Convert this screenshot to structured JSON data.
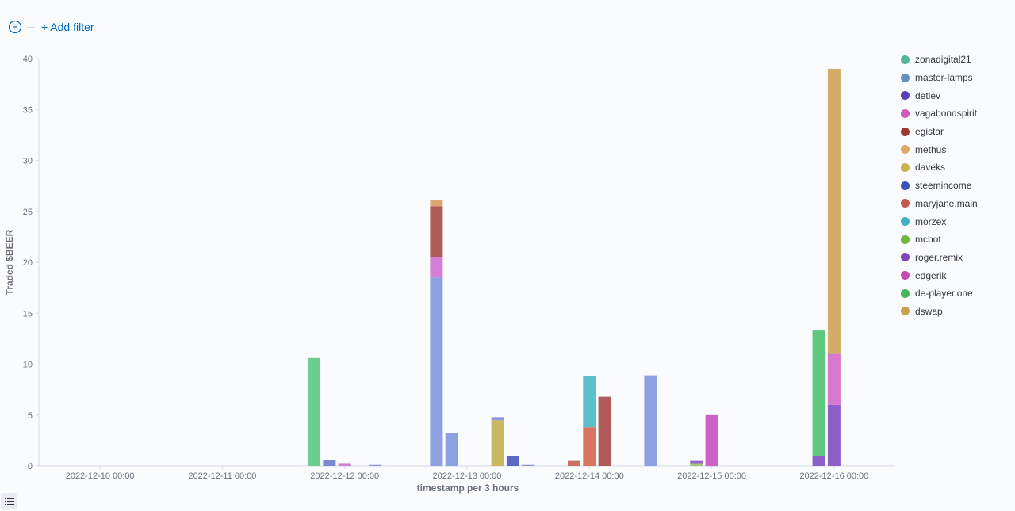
{
  "filter_bar": {
    "icon": "filter-icon",
    "add_filter_label": "+ Add filter",
    "accent": "#006bb8"
  },
  "legend_toggle_icon": "list-icon",
  "chart_data": {
    "type": "bar",
    "stacked": true,
    "xlabel": "timestamp per 3 hours",
    "ylabel": "Traded $BEER",
    "ylim": [
      0,
      40
    ],
    "yticks": [
      0,
      5,
      10,
      15,
      20,
      25,
      30,
      35,
      40
    ],
    "x_tick_labels": [
      "2022-12-10 00:00",
      "2022-12-11 00:00",
      "2022-12-12 00:00",
      "2022-12-13 00:00",
      "2022-12-14 00:00",
      "2022-12-15 00:00",
      "2022-12-16 00:00"
    ],
    "x_tick_dates": [
      "2022-12-10 00:00",
      "2022-12-11 00:00",
      "2022-12-12 00:00",
      "2022-12-13 00:00",
      "2022-12-14 00:00",
      "2022-12-15 00:00",
      "2022-12-16 00:00"
    ],
    "x_range": [
      "2022-12-09 12:00",
      "2022-12-16 12:00"
    ],
    "bucket": "3 hours",
    "grid": false,
    "legend_position": "right",
    "series_legend": [
      {
        "name": "zonadigital21",
        "color": "#54B399"
      },
      {
        "name": "master-lamps",
        "color": "#6092C0"
      },
      {
        "name": "detlev",
        "color": "#5D3FB5"
      },
      {
        "name": "vagabondspirit",
        "color": "#CA5CC0"
      },
      {
        "name": "egistar",
        "color": "#9A3A2E"
      },
      {
        "name": "methus",
        "color": "#E0A768"
      },
      {
        "name": "daveks",
        "color": "#C7B44B"
      },
      {
        "name": "steemincome",
        "color": "#3D50B5"
      },
      {
        "name": "maryjane.main",
        "color": "#C05A4B"
      },
      {
        "name": "morzex",
        "color": "#41B1C4"
      },
      {
        "name": "mcbot",
        "color": "#6DB83E"
      },
      {
        "name": "roger.remix",
        "color": "#8145B8"
      },
      {
        "name": "edgerik",
        "color": "#C24BB0"
      },
      {
        "name": "de-player.one",
        "color": "#46B45B"
      },
      {
        "name": "dswap",
        "color": "#C9A04E"
      }
    ],
    "bars": [
      {
        "time": "2022-12-11 18:00",
        "stack": [
          {
            "series": "zonadigital21",
            "value": 10.6,
            "color": "#6DCD8F"
          }
        ]
      },
      {
        "time": "2022-12-11 21:00",
        "stack": [
          {
            "series": "master-lamps",
            "value": 0.6,
            "color": "#7E88D0"
          }
        ]
      },
      {
        "time": "2022-12-12 00:00",
        "stack": [
          {
            "series": "vagabondspirit",
            "value": 0.2,
            "color": "#D27ED2"
          }
        ]
      },
      {
        "time": "2022-12-12 06:00",
        "stack": [
          {
            "series": "master-lamps",
            "value": 0.1,
            "color": "#8E96DE"
          }
        ]
      },
      {
        "time": "2022-12-12 18:00",
        "stack": [
          {
            "series": "master-lamps",
            "value": 18.5,
            "color": "#8DA0E2"
          },
          {
            "series": "vagabondspirit",
            "value": 2.0,
            "color": "#D47ED8"
          },
          {
            "series": "egistar",
            "value": 5.0,
            "color": "#B05A5A"
          },
          {
            "series": "methus",
            "value": 0.6,
            "color": "#D9A874"
          }
        ]
      },
      {
        "time": "2022-12-12 21:00",
        "stack": [
          {
            "series": "master-lamps",
            "value": 3.2,
            "color": "#8DA0E2"
          }
        ]
      },
      {
        "time": "2022-12-13 06:00",
        "stack": [
          {
            "series": "daveks",
            "value": 4.5,
            "color": "#C9B761"
          },
          {
            "series": "master-lamps",
            "value": 0.3,
            "color": "#8E96DE"
          }
        ]
      },
      {
        "time": "2022-12-13 09:00",
        "stack": [
          {
            "series": "steemincome",
            "value": 1.0,
            "color": "#5B67C4"
          }
        ]
      },
      {
        "time": "2022-12-13 12:00",
        "stack": [
          {
            "series": "master-lamps",
            "value": 0.1,
            "color": "#8E96DE"
          }
        ]
      },
      {
        "time": "2022-12-13 21:00",
        "stack": [
          {
            "series": "maryjane.main",
            "value": 0.5,
            "color": "#CC6E60"
          }
        ]
      },
      {
        "time": "2022-12-14 00:00",
        "stack": [
          {
            "series": "maryjane.main",
            "value": 3.8,
            "color": "#D87362"
          },
          {
            "series": "morzex",
            "value": 5.0,
            "color": "#5EBFCC"
          }
        ]
      },
      {
        "time": "2022-12-14 03:00",
        "stack": [
          {
            "series": "egistar",
            "value": 6.8,
            "color": "#B05A5A"
          }
        ]
      },
      {
        "time": "2022-12-14 12:00",
        "stack": [
          {
            "series": "master-lamps",
            "value": 8.9,
            "color": "#8DA0E2"
          }
        ]
      },
      {
        "time": "2022-12-14 21:00",
        "stack": [
          {
            "series": "mcbot",
            "value": 0.2,
            "color": "#A6C47A"
          },
          {
            "series": "roger.remix",
            "value": 0.3,
            "color": "#9366C8"
          }
        ]
      },
      {
        "time": "2022-12-15 00:00",
        "stack": [
          {
            "series": "edgerik",
            "value": 5.0,
            "color": "#CD61C4"
          }
        ]
      },
      {
        "time": "2022-12-15 21:00",
        "stack": [
          {
            "series": "roger.remix",
            "value": 1.0,
            "color": "#8C60C8"
          },
          {
            "series": "de-player.one",
            "value": 12.3,
            "color": "#5EC87E"
          }
        ]
      },
      {
        "time": "2022-12-16 00:00",
        "stack": [
          {
            "series": "roger.remix",
            "value": 6.0,
            "color": "#8C60C8"
          },
          {
            "series": "edgerik",
            "value": 5.0,
            "color": "#D779CF"
          },
          {
            "series": "dswap",
            "value": 28.0,
            "color": "#D5AC67"
          }
        ]
      }
    ]
  }
}
